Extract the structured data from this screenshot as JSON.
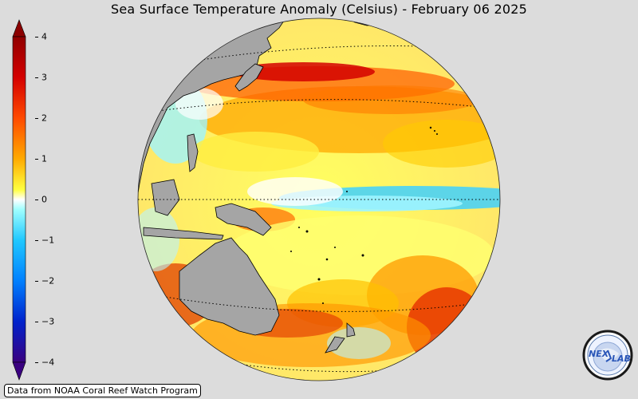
{
  "title": "Sea Surface Temperature Anomaly (Celsius) - February 06 2025",
  "colorbar": {
    "min": -4,
    "max": 4,
    "ticks": [
      "4",
      "3",
      "2",
      "1",
      "0",
      "−1",
      "−2",
      "−3",
      "−4"
    ],
    "colors": [
      "#3a0080",
      "#0033cc",
      "#0088ff",
      "#40d8ff",
      "#ffffff",
      "#ffff40",
      "#ffaa00",
      "#ff3300",
      "#900000"
    ]
  },
  "credit": "Data from NOAA Coral Reef Watch Program",
  "logo": {
    "text": "NEXLAB",
    "icon": "nexlab-logo"
  },
  "map": {
    "land_color": "#a5a5a5",
    "ocean_base_color": "#ffff80"
  }
}
